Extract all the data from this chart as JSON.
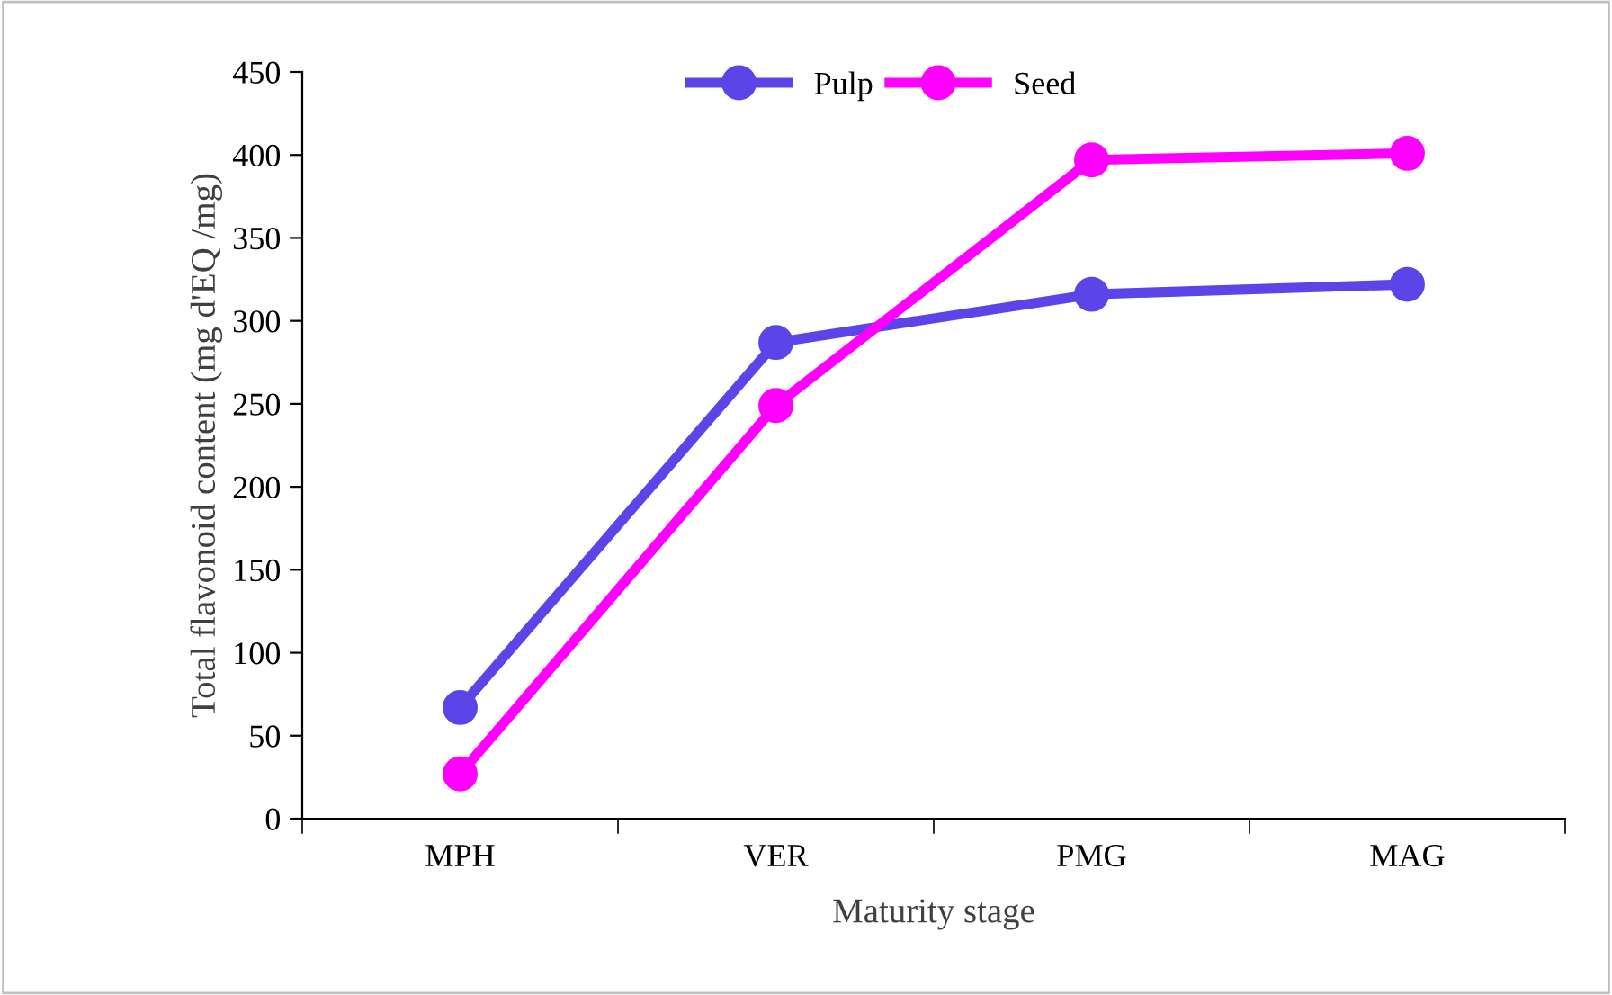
{
  "chart_data": {
    "type": "line",
    "xlabel": "Maturity stage",
    "ylabel": "Total flavonoid content (mg d'EQ /mg)",
    "categories": [
      "MPH",
      "VER",
      "PMG",
      "MAG"
    ],
    "series": [
      {
        "name": "Pulp",
        "color": "#5b45e8",
        "values": [
          67,
          287,
          316,
          322
        ]
      },
      {
        "name": "Seed",
        "color": "#ff00ff",
        "values": [
          27,
          249,
          397,
          401
        ]
      }
    ],
    "ylim": [
      0,
      450
    ],
    "yticks": [
      0,
      50,
      100,
      150,
      200,
      250,
      300,
      350,
      400,
      450
    ],
    "grid": false,
    "legend": "top",
    "marker": "circle",
    "line_style": "solid"
  }
}
